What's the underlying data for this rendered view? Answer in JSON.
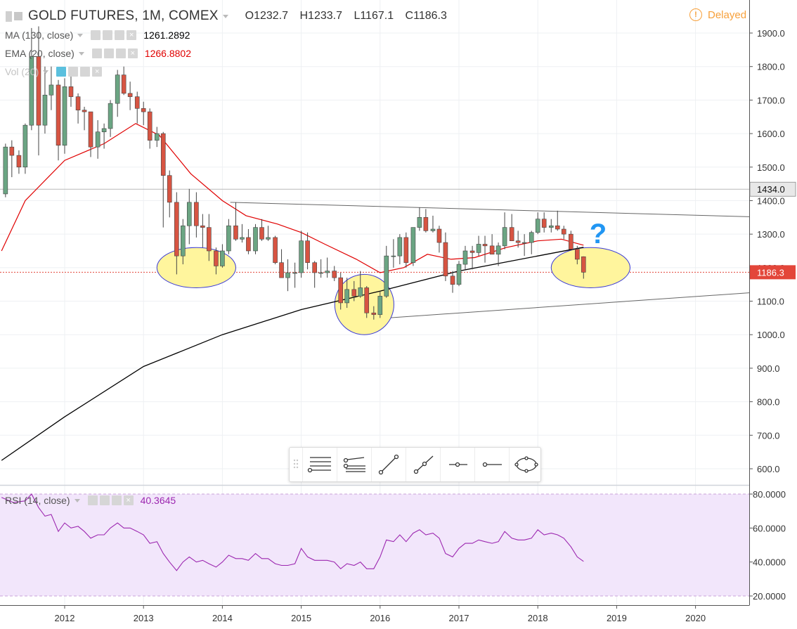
{
  "header": {
    "symbol_title": "GOLD FUTURES, 1M, COMEX",
    "open_label": "O",
    "open_value": "1232.7",
    "high_label": "H",
    "high_value": "1233.7",
    "low_label": "L",
    "low_value": "1167.1",
    "close_label": "C",
    "close_value": "1186.3",
    "delayed_label": "Delayed",
    "delayed_icon": "exclamation-circle-icon"
  },
  "indicators": [
    {
      "label": "MA (130, close)",
      "value": "1261.2892",
      "color": "#000000"
    },
    {
      "label": "EMA (20, close)",
      "value": "1266.8802",
      "color": "#e00000"
    },
    {
      "label": "Vol (20)",
      "value": "",
      "color": "#bbbbbb"
    }
  ],
  "rsi_panel": {
    "label": "RSI (14, close)",
    "value": "40.3645",
    "color": "#9c27b0"
  },
  "colors": {
    "up_candle": "#6ba583",
    "down_candle": "#d75442",
    "ma_line": "#000000",
    "ema_line": "#e00000",
    "rsi_line": "#9c27b0",
    "rsi_band": "#f2e6fb",
    "highlight_fill": "#fff59d",
    "highlight_stroke": "#3b3bd6",
    "question_mark": "#2196f3",
    "price_tag": "#e3463a",
    "last_line": "#e3463a"
  },
  "annotations": {
    "question_mark": "?",
    "highlighted_zones": [
      "2013 low",
      "2015 low",
      "2018 current"
    ]
  },
  "drawing_toolbar": {
    "tools": [
      "horizontal-lines-icon",
      "trend-fan-icon",
      "trend-line-icon",
      "ray-icon",
      "horizontal-ray-icon",
      "horizontal-line-icon",
      "ellipse-icon"
    ]
  },
  "chart_data": {
    "type": "candlestick",
    "title": "GOLD FUTURES, 1M, COMEX",
    "x_ticks": [
      "2012",
      "2013",
      "2014",
      "2015",
      "2016",
      "2017",
      "2018",
      "2019",
      "2020"
    ],
    "y_ticks": [
      "1900.0",
      "1800.0",
      "1700.0",
      "1600.0",
      "1500.0",
      "1400.0",
      "1300.0",
      "1200.0",
      "1100.0",
      "1000.0",
      "900.0",
      "800.0",
      "700.0",
      "600.0"
    ],
    "ylim": [
      565,
      1945
    ],
    "x_range": [
      2011.2,
      2020.7
    ],
    "price_tags": [
      {
        "label": "1434.0",
        "value": 1434.0,
        "style": "dark"
      },
      {
        "label": "1186.3",
        "value": 1186.3,
        "style": "red"
      }
    ],
    "candles": [
      {
        "t": 2011.25,
        "o": 1420,
        "h": 1570,
        "l": 1410,
        "c": 1560
      },
      {
        "t": 2011.33,
        "o": 1560,
        "h": 1580,
        "l": 1470,
        "c": 1535
      },
      {
        "t": 2011.42,
        "o": 1535,
        "h": 1550,
        "l": 1480,
        "c": 1500
      },
      {
        "t": 2011.5,
        "o": 1500,
        "h": 1630,
        "l": 1480,
        "c": 1625
      },
      {
        "t": 2011.58,
        "o": 1625,
        "h": 1915,
        "l": 1610,
        "c": 1830
      },
      {
        "t": 2011.67,
        "o": 1830,
        "h": 1920,
        "l": 1535,
        "c": 1625
      },
      {
        "t": 2011.75,
        "o": 1625,
        "h": 1800,
        "l": 1600,
        "c": 1715
      },
      {
        "t": 2011.83,
        "o": 1715,
        "h": 1800,
        "l": 1670,
        "c": 1745
      },
      {
        "t": 2011.92,
        "o": 1745,
        "h": 1760,
        "l": 1520,
        "c": 1565
      },
      {
        "t": 2012.0,
        "o": 1565,
        "h": 1765,
        "l": 1540,
        "c": 1740
      },
      {
        "t": 2012.08,
        "o": 1740,
        "h": 1790,
        "l": 1680,
        "c": 1710
      },
      {
        "t": 2012.17,
        "o": 1710,
        "h": 1720,
        "l": 1630,
        "c": 1670
      },
      {
        "t": 2012.25,
        "o": 1670,
        "h": 1680,
        "l": 1610,
        "c": 1665
      },
      {
        "t": 2012.33,
        "o": 1665,
        "h": 1665,
        "l": 1530,
        "c": 1560
      },
      {
        "t": 2012.42,
        "o": 1560,
        "h": 1640,
        "l": 1525,
        "c": 1605
      },
      {
        "t": 2012.5,
        "o": 1605,
        "h": 1630,
        "l": 1555,
        "c": 1615
      },
      {
        "t": 2012.58,
        "o": 1615,
        "h": 1700,
        "l": 1590,
        "c": 1690
      },
      {
        "t": 2012.67,
        "o": 1690,
        "h": 1790,
        "l": 1650,
        "c": 1775
      },
      {
        "t": 2012.75,
        "o": 1775,
        "h": 1800,
        "l": 1715,
        "c": 1720
      },
      {
        "t": 2012.83,
        "o": 1720,
        "h": 1755,
        "l": 1670,
        "c": 1710
      },
      {
        "t": 2012.92,
        "o": 1710,
        "h": 1725,
        "l": 1630,
        "c": 1675
      },
      {
        "t": 2013.0,
        "o": 1675,
        "h": 1695,
        "l": 1625,
        "c": 1665
      },
      {
        "t": 2013.08,
        "o": 1665,
        "h": 1675,
        "l": 1555,
        "c": 1580
      },
      {
        "t": 2013.17,
        "o": 1580,
        "h": 1620,
        "l": 1560,
        "c": 1600
      },
      {
        "t": 2013.25,
        "o": 1600,
        "h": 1605,
        "l": 1320,
        "c": 1475
      },
      {
        "t": 2013.33,
        "o": 1475,
        "h": 1490,
        "l": 1350,
        "c": 1395
      },
      {
        "t": 2013.42,
        "o": 1395,
        "h": 1425,
        "l": 1180,
        "c": 1235
      },
      {
        "t": 2013.5,
        "o": 1235,
        "h": 1345,
        "l": 1210,
        "c": 1325
      },
      {
        "t": 2013.58,
        "o": 1325,
        "h": 1435,
        "l": 1270,
        "c": 1395
      },
      {
        "t": 2013.67,
        "o": 1395,
        "h": 1425,
        "l": 1290,
        "c": 1325
      },
      {
        "t": 2013.75,
        "o": 1325,
        "h": 1360,
        "l": 1260,
        "c": 1320
      },
      {
        "t": 2013.83,
        "o": 1320,
        "h": 1360,
        "l": 1220,
        "c": 1250
      },
      {
        "t": 2013.92,
        "o": 1250,
        "h": 1260,
        "l": 1180,
        "c": 1205
      },
      {
        "t": 2014.0,
        "o": 1205,
        "h": 1270,
        "l": 1200,
        "c": 1250
      },
      {
        "t": 2014.08,
        "o": 1250,
        "h": 1345,
        "l": 1240,
        "c": 1325
      },
      {
        "t": 2014.17,
        "o": 1325,
        "h": 1395,
        "l": 1280,
        "c": 1285
      },
      {
        "t": 2014.25,
        "o": 1285,
        "h": 1330,
        "l": 1275,
        "c": 1290
      },
      {
        "t": 2014.33,
        "o": 1290,
        "h": 1315,
        "l": 1240,
        "c": 1250
      },
      {
        "t": 2014.42,
        "o": 1250,
        "h": 1330,
        "l": 1240,
        "c": 1320
      },
      {
        "t": 2014.5,
        "o": 1320,
        "h": 1345,
        "l": 1280,
        "c": 1285
      },
      {
        "t": 2014.58,
        "o": 1285,
        "h": 1325,
        "l": 1280,
        "c": 1290
      },
      {
        "t": 2014.67,
        "o": 1290,
        "h": 1295,
        "l": 1210,
        "c": 1215
      },
      {
        "t": 2014.75,
        "o": 1215,
        "h": 1255,
        "l": 1180,
        "c": 1170
      },
      {
        "t": 2014.83,
        "o": 1170,
        "h": 1225,
        "l": 1130,
        "c": 1185
      },
      {
        "t": 2014.92,
        "o": 1185,
        "h": 1215,
        "l": 1140,
        "c": 1185
      },
      {
        "t": 2015.0,
        "o": 1185,
        "h": 1310,
        "l": 1170,
        "c": 1280
      },
      {
        "t": 2015.08,
        "o": 1280,
        "h": 1305,
        "l": 1195,
        "c": 1215
      },
      {
        "t": 2015.17,
        "o": 1215,
        "h": 1220,
        "l": 1140,
        "c": 1185
      },
      {
        "t": 2015.25,
        "o": 1185,
        "h": 1225,
        "l": 1170,
        "c": 1185
      },
      {
        "t": 2015.33,
        "o": 1185,
        "h": 1230,
        "l": 1170,
        "c": 1190
      },
      {
        "t": 2015.42,
        "o": 1190,
        "h": 1205,
        "l": 1160,
        "c": 1170
      },
      {
        "t": 2015.5,
        "o": 1170,
        "h": 1185,
        "l": 1075,
        "c": 1095
      },
      {
        "t": 2015.58,
        "o": 1095,
        "h": 1170,
        "l": 1080,
        "c": 1135
      },
      {
        "t": 2015.67,
        "o": 1135,
        "h": 1160,
        "l": 1100,
        "c": 1115
      },
      {
        "t": 2015.75,
        "o": 1115,
        "h": 1190,
        "l": 1110,
        "c": 1140
      },
      {
        "t": 2015.83,
        "o": 1140,
        "h": 1145,
        "l": 1050,
        "c": 1065
      },
      {
        "t": 2015.92,
        "o": 1065,
        "h": 1085,
        "l": 1045,
        "c": 1060
      },
      {
        "t": 2016.0,
        "o": 1060,
        "h": 1130,
        "l": 1050,
        "c": 1115
      },
      {
        "t": 2016.08,
        "o": 1115,
        "h": 1265,
        "l": 1110,
        "c": 1235
      },
      {
        "t": 2016.17,
        "o": 1235,
        "h": 1285,
        "l": 1200,
        "c": 1235
      },
      {
        "t": 2016.25,
        "o": 1235,
        "h": 1300,
        "l": 1210,
        "c": 1290
      },
      {
        "t": 2016.33,
        "o": 1290,
        "h": 1305,
        "l": 1200,
        "c": 1215
      },
      {
        "t": 2016.42,
        "o": 1215,
        "h": 1320,
        "l": 1205,
        "c": 1320
      },
      {
        "t": 2016.5,
        "o": 1320,
        "h": 1380,
        "l": 1310,
        "c": 1350
      },
      {
        "t": 2016.58,
        "o": 1350,
        "h": 1375,
        "l": 1305,
        "c": 1310
      },
      {
        "t": 2016.67,
        "o": 1310,
        "h": 1355,
        "l": 1305,
        "c": 1315
      },
      {
        "t": 2016.75,
        "o": 1315,
        "h": 1325,
        "l": 1245,
        "c": 1275
      },
      {
        "t": 2016.83,
        "o": 1275,
        "h": 1305,
        "l": 1160,
        "c": 1175
      },
      {
        "t": 2016.92,
        "o": 1175,
        "h": 1190,
        "l": 1125,
        "c": 1150
      },
      {
        "t": 2017.0,
        "o": 1150,
        "h": 1220,
        "l": 1145,
        "c": 1210
      },
      {
        "t": 2017.08,
        "o": 1210,
        "h": 1265,
        "l": 1195,
        "c": 1250
      },
      {
        "t": 2017.17,
        "o": 1250,
        "h": 1265,
        "l": 1195,
        "c": 1245
      },
      {
        "t": 2017.25,
        "o": 1245,
        "h": 1295,
        "l": 1235,
        "c": 1270
      },
      {
        "t": 2017.33,
        "o": 1270,
        "h": 1295,
        "l": 1215,
        "c": 1265
      },
      {
        "t": 2017.42,
        "o": 1265,
        "h": 1300,
        "l": 1245,
        "c": 1240
      },
      {
        "t": 2017.5,
        "o": 1240,
        "h": 1275,
        "l": 1205,
        "c": 1265
      },
      {
        "t": 2017.58,
        "o": 1265,
        "h": 1365,
        "l": 1255,
        "c": 1320
      },
      {
        "t": 2017.67,
        "o": 1320,
        "h": 1360,
        "l": 1280,
        "c": 1280
      },
      {
        "t": 2017.75,
        "o": 1280,
        "h": 1310,
        "l": 1260,
        "c": 1275
      },
      {
        "t": 2017.83,
        "o": 1275,
        "h": 1300,
        "l": 1235,
        "c": 1275
      },
      {
        "t": 2017.92,
        "o": 1275,
        "h": 1310,
        "l": 1240,
        "c": 1305
      },
      {
        "t": 2018.0,
        "o": 1305,
        "h": 1365,
        "l": 1300,
        "c": 1345
      },
      {
        "t": 2018.08,
        "o": 1345,
        "h": 1365,
        "l": 1305,
        "c": 1320
      },
      {
        "t": 2018.17,
        "o": 1320,
        "h": 1345,
        "l": 1305,
        "c": 1325
      },
      {
        "t": 2018.25,
        "o": 1325,
        "h": 1370,
        "l": 1310,
        "c": 1315
      },
      {
        "t": 2018.33,
        "o": 1315,
        "h": 1325,
        "l": 1285,
        "c": 1300
      },
      {
        "t": 2018.42,
        "o": 1300,
        "h": 1310,
        "l": 1255,
        "c": 1255
      },
      {
        "t": 2018.5,
        "o": 1255,
        "h": 1265,
        "l": 1210,
        "c": 1225
      },
      {
        "t": 2018.58,
        "o": 1232.7,
        "h": 1233.7,
        "l": 1167.1,
        "c": 1186.3
      }
    ],
    "ma_130": [
      [
        2011.2,
        625
      ],
      [
        2012.0,
        755
      ],
      [
        2013.0,
        905
      ],
      [
        2014.0,
        1000
      ],
      [
        2015.0,
        1075
      ],
      [
        2016.0,
        1130
      ],
      [
        2017.0,
        1190
      ],
      [
        2018.0,
        1235
      ],
      [
        2018.58,
        1261
      ]
    ],
    "ema_20": [
      [
        2011.2,
        1250
      ],
      [
        2011.5,
        1400
      ],
      [
        2012.0,
        1520
      ],
      [
        2012.5,
        1570
      ],
      [
        2012.9,
        1630
      ],
      [
        2013.2,
        1595
      ],
      [
        2013.6,
        1480
      ],
      [
        2014.0,
        1400
      ],
      [
        2014.3,
        1355
      ],
      [
        2014.7,
        1330
      ],
      [
        2015.0,
        1305
      ],
      [
        2015.3,
        1270
      ],
      [
        2015.7,
        1225
      ],
      [
        2016.0,
        1185
      ],
      [
        2016.3,
        1200
      ],
      [
        2016.6,
        1240
      ],
      [
        2016.9,
        1225
      ],
      [
        2017.2,
        1230
      ],
      [
        2017.6,
        1260
      ],
      [
        2018.0,
        1280
      ],
      [
        2018.3,
        1285
      ],
      [
        2018.58,
        1267
      ]
    ],
    "trendlines": [
      {
        "from": [
          2014.1,
          1395
        ],
        "to": [
          2020.7,
          1352
        ]
      },
      {
        "from": [
          2016.1,
          1050
        ],
        "to": [
          2020.7,
          1125
        ]
      }
    ],
    "highlight_zones": [
      {
        "center": [
          2013.67,
          1200
        ],
        "span_x": 1.0,
        "span_y": 120
      },
      {
        "center": [
          2015.8,
          1090
        ],
        "span_x": 0.75,
        "span_y": 180
      },
      {
        "center": [
          2018.67,
          1200
        ],
        "span_x": 1.0,
        "span_y": 120
      }
    ],
    "rsi": {
      "ylim": [
        15,
        85
      ],
      "y_ticks": [
        "80.0000",
        "60.0000",
        "40.0000",
        "20.0000"
      ],
      "band": [
        20,
        80
      ],
      "values": [
        [
          2011.2,
          78
        ],
        [
          2011.35,
          75
        ],
        [
          2011.5,
          76
        ],
        [
          2011.58,
          80
        ],
        [
          2011.67,
          72
        ],
        [
          2011.75,
          67
        ],
        [
          2011.83,
          68
        ],
        [
          2011.92,
          58
        ],
        [
          2012.0,
          63
        ],
        [
          2012.08,
          60
        ],
        [
          2012.17,
          61
        ],
        [
          2012.25,
          58
        ],
        [
          2012.33,
          54
        ],
        [
          2012.42,
          56
        ],
        [
          2012.5,
          56
        ],
        [
          2012.58,
          60
        ],
        [
          2012.67,
          63
        ],
        [
          2012.75,
          60
        ],
        [
          2012.83,
          60
        ],
        [
          2012.92,
          58
        ],
        [
          2013.0,
          56
        ],
        [
          2013.08,
          51
        ],
        [
          2013.17,
          52
        ],
        [
          2013.25,
          45
        ],
        [
          2013.33,
          40
        ],
        [
          2013.42,
          35
        ],
        [
          2013.5,
          40
        ],
        [
          2013.58,
          43
        ],
        [
          2013.67,
          40
        ],
        [
          2013.75,
          41
        ],
        [
          2013.83,
          39
        ],
        [
          2013.92,
          37
        ],
        [
          2014.0,
          40
        ],
        [
          2014.08,
          44
        ],
        [
          2014.17,
          42
        ],
        [
          2014.25,
          42
        ],
        [
          2014.33,
          41
        ],
        [
          2014.42,
          45
        ],
        [
          2014.5,
          42
        ],
        [
          2014.58,
          42
        ],
        [
          2014.67,
          39
        ],
        [
          2014.75,
          38
        ],
        [
          2014.83,
          38
        ],
        [
          2014.92,
          39
        ],
        [
          2015.0,
          48
        ],
        [
          2015.08,
          43
        ],
        [
          2015.17,
          41
        ],
        [
          2015.25,
          41
        ],
        [
          2015.33,
          41
        ],
        [
          2015.42,
          40
        ],
        [
          2015.5,
          36
        ],
        [
          2015.58,
          39
        ],
        [
          2015.67,
          38
        ],
        [
          2015.75,
          40
        ],
        [
          2015.83,
          36
        ],
        [
          2015.92,
          36
        ],
        [
          2016.0,
          43
        ],
        [
          2016.08,
          53
        ],
        [
          2016.17,
          52
        ],
        [
          2016.25,
          56
        ],
        [
          2016.33,
          52
        ],
        [
          2016.42,
          57
        ],
        [
          2016.5,
          59
        ],
        [
          2016.58,
          56
        ],
        [
          2016.67,
          57
        ],
        [
          2016.75,
          54
        ],
        [
          2016.83,
          45
        ],
        [
          2016.92,
          43
        ],
        [
          2017.0,
          48
        ],
        [
          2017.08,
          51
        ],
        [
          2017.17,
          51
        ],
        [
          2017.25,
          53
        ],
        [
          2017.33,
          52
        ],
        [
          2017.42,
          51
        ],
        [
          2017.5,
          52
        ],
        [
          2017.58,
          58
        ],
        [
          2017.67,
          54
        ],
        [
          2017.75,
          53
        ],
        [
          2017.83,
          53
        ],
        [
          2017.92,
          54
        ],
        [
          2018.0,
          59
        ],
        [
          2018.08,
          56
        ],
        [
          2018.17,
          57
        ],
        [
          2018.25,
          56
        ],
        [
          2018.33,
          54
        ],
        [
          2018.42,
          49
        ],
        [
          2018.5,
          43
        ],
        [
          2018.58,
          40.36
        ]
      ]
    }
  }
}
